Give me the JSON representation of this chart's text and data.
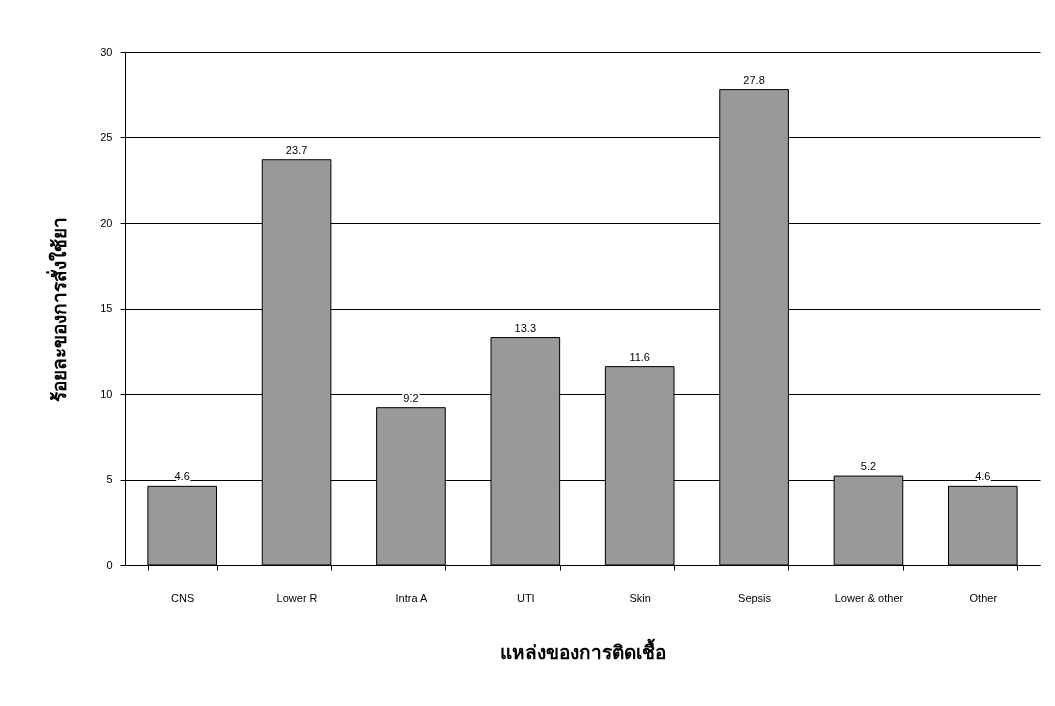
{
  "chart_data": {
    "type": "bar",
    "xlabel": "แหล่งของการติดเชื้อ",
    "ylabel": "ร้อยละของการสั่งใช้ยา",
    "categories": [
      "CNS",
      "Lower R",
      "Intra A",
      "UTI",
      "Skin",
      "Sepsis",
      "Lower & other",
      "Other"
    ],
    "values": [
      4.6,
      23.7,
      9.2,
      13.3,
      11.6,
      27.8,
      5.2,
      4.6
    ],
    "color": "#999999",
    "ylim": [
      0,
      30
    ],
    "yticks": [
      0,
      5,
      10,
      15,
      20,
      25,
      30
    ],
    "grid": "y",
    "data_labels": true
  }
}
